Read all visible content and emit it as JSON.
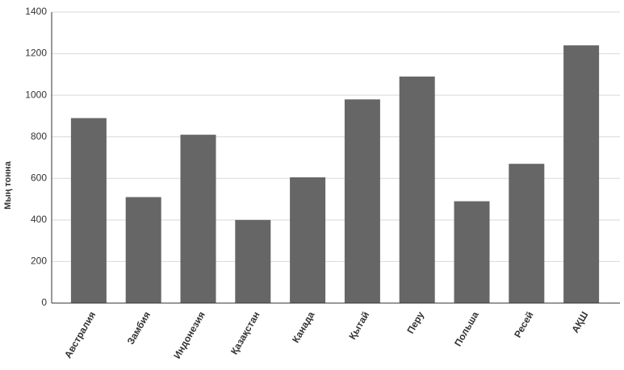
{
  "chart_data": {
    "type": "bar",
    "y_label": "Мың тонна",
    "categories": [
      "Австралия",
      "Замбия",
      "Индонезия",
      "Қазақстан",
      "Канада",
      "Қытай",
      "Перу",
      "Польша",
      "Ресей",
      "АҚШ"
    ],
    "values": [
      890,
      510,
      810,
      400,
      605,
      980,
      1090,
      490,
      670,
      1240
    ],
    "color": "#666666",
    "ylim": [
      0,
      1400
    ],
    "yticks": [
      0,
      200,
      400,
      600,
      800,
      1000,
      1200,
      1400
    ],
    "grid": true
  }
}
